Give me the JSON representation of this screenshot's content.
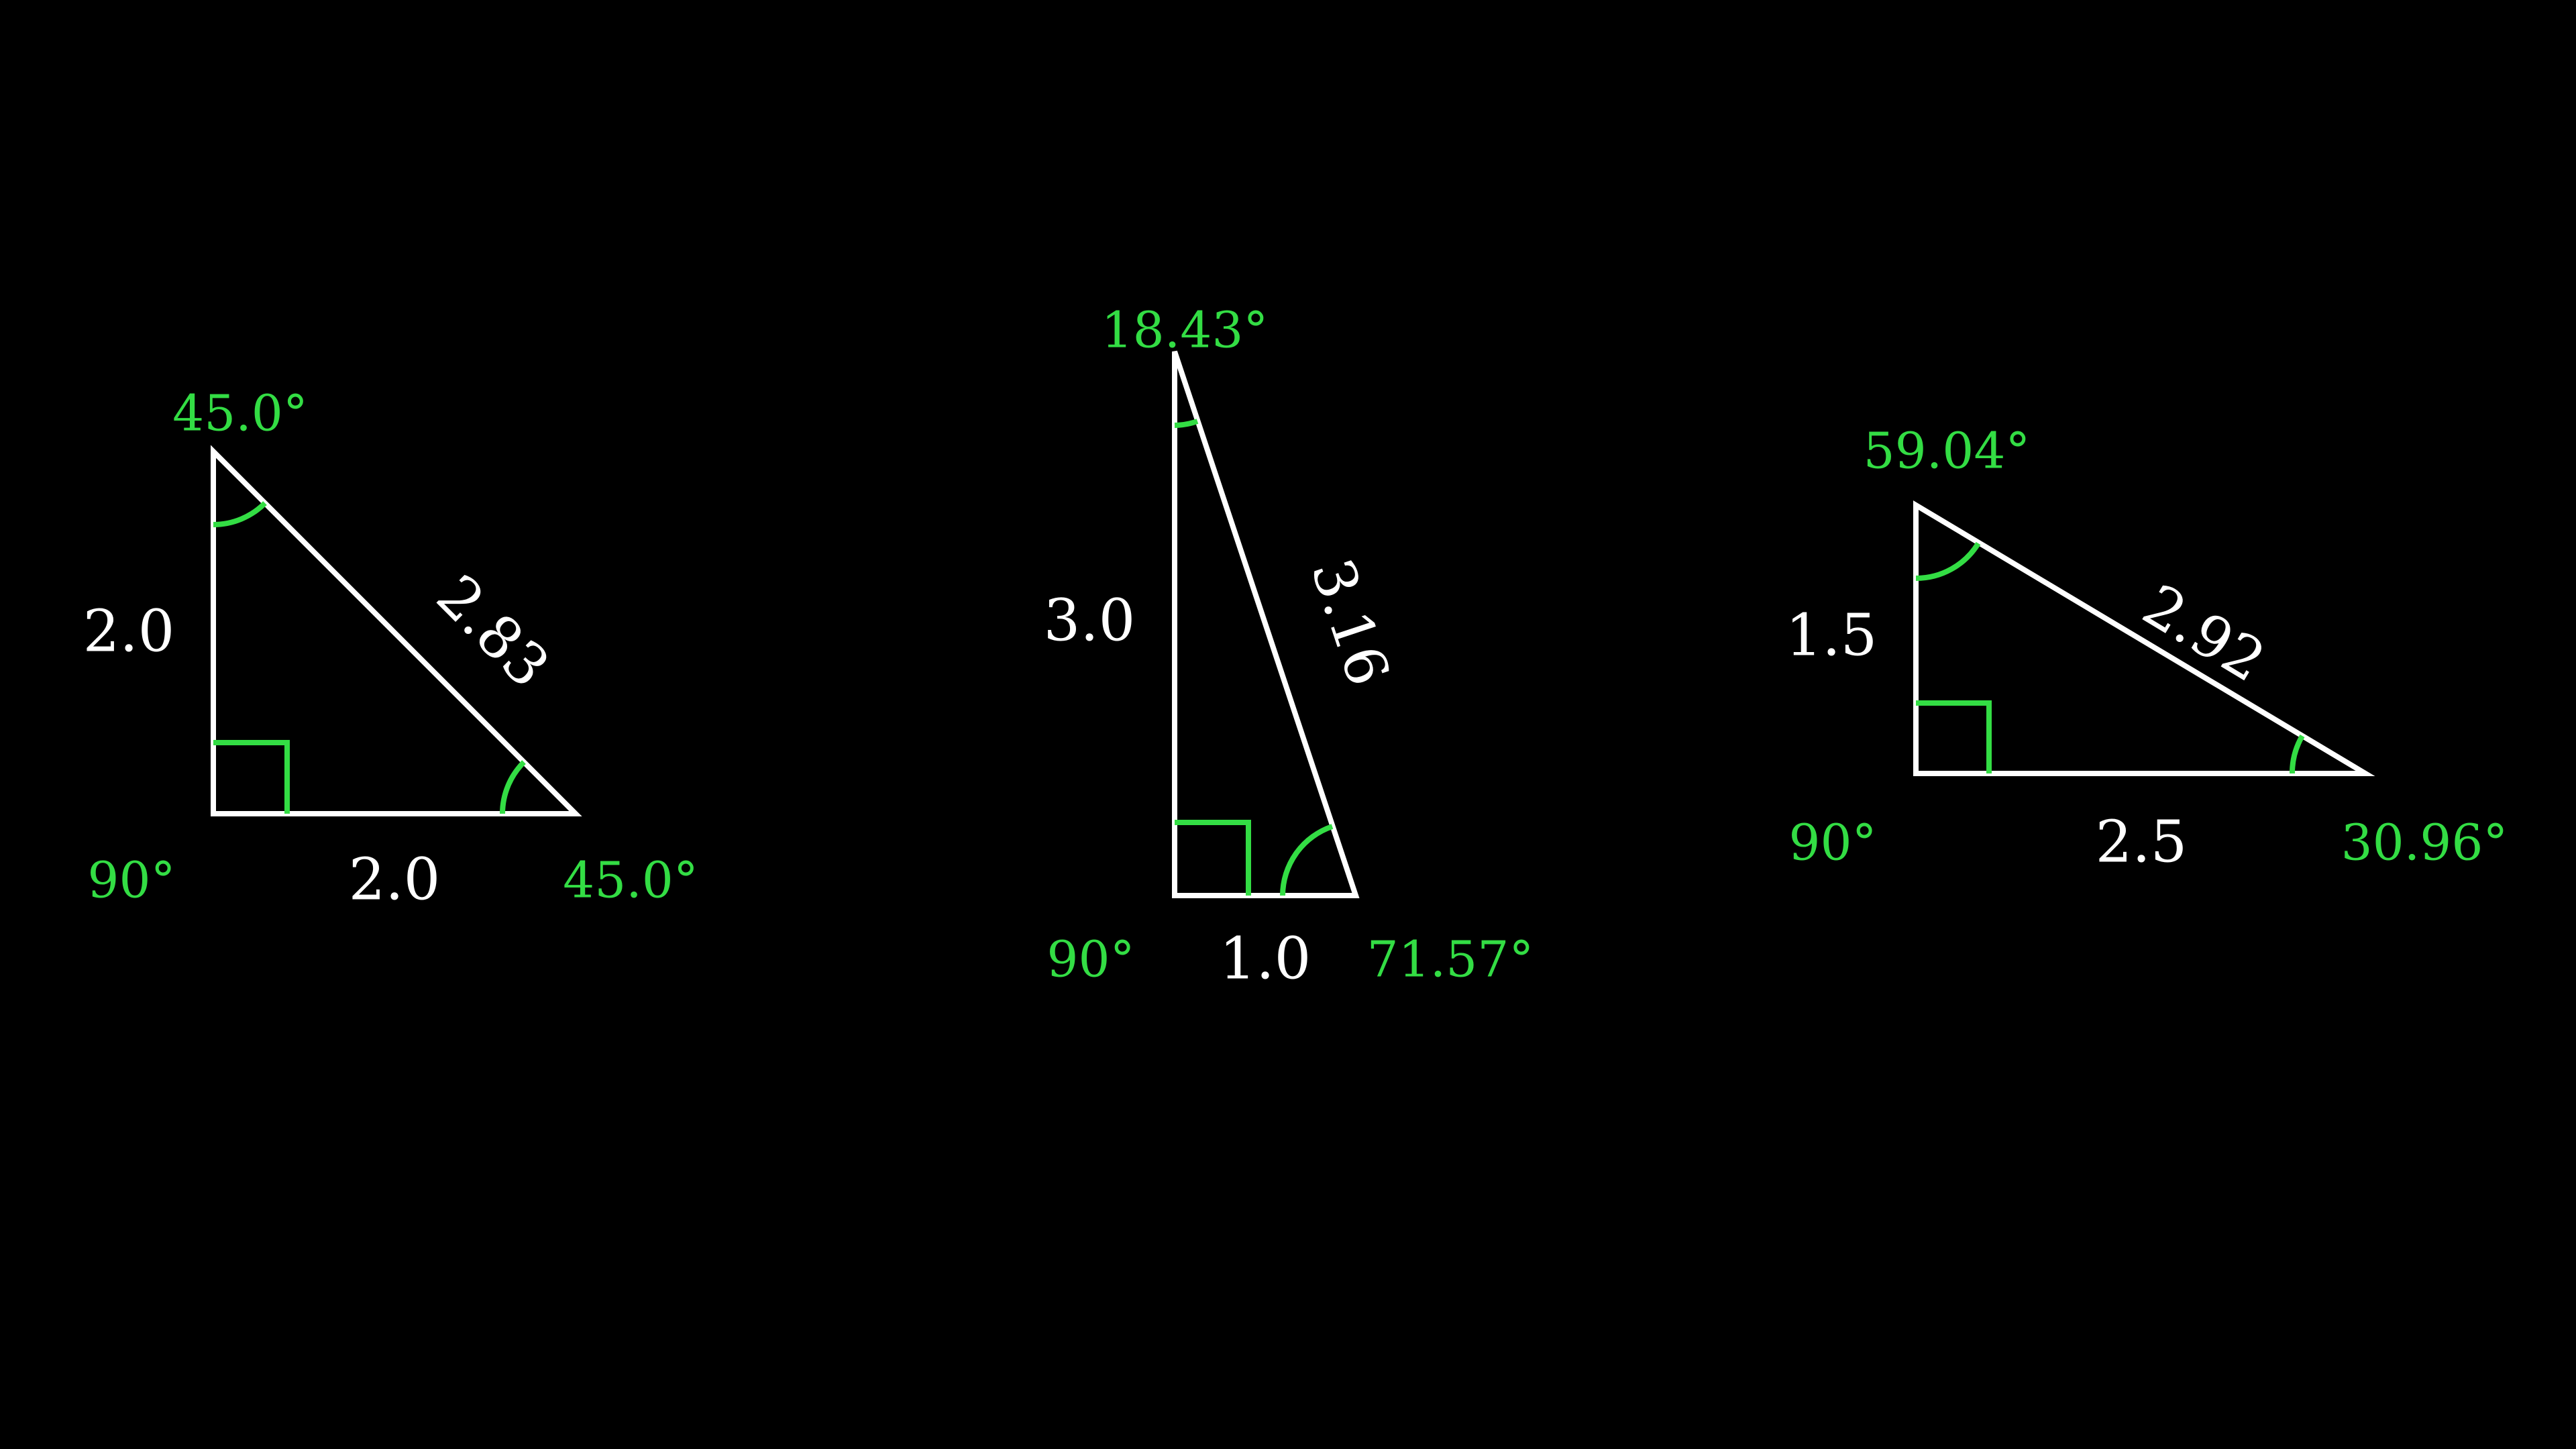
{
  "colors": {
    "background": "#000000",
    "edge": "#ffffff",
    "angle": "#33dd44"
  },
  "triangles": [
    {
      "sides": {
        "vertical": "2.0",
        "horizontal": "2.0",
        "hypotenuse": "2.83"
      },
      "angles": {
        "top": "45.0°",
        "right_angle": "90°",
        "bottom_right": "45.0°"
      }
    },
    {
      "sides": {
        "vertical": "3.0",
        "horizontal": "1.0",
        "hypotenuse": "3.16"
      },
      "angles": {
        "top": "18.43°",
        "right_angle": "90°",
        "bottom_right": "71.57°"
      }
    },
    {
      "sides": {
        "vertical": "1.5",
        "horizontal": "2.5",
        "hypotenuse": "2.92"
      },
      "angles": {
        "top": "59.04°",
        "right_angle": "90°",
        "bottom_right": "30.96°"
      }
    }
  ]
}
